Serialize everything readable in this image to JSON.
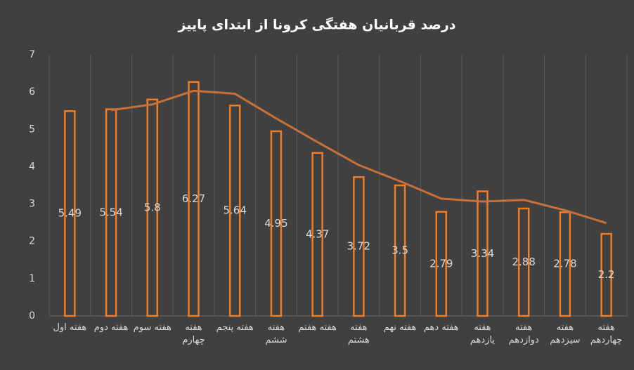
{
  "chart_data": {
    "type": "bar",
    "title": "درصد قربانیان هفتگی کرونا از ابتدای پاییز",
    "categories": [
      "هفته اول",
      "هفته دوم",
      "هفته سوم",
      "هفته چهارم",
      "هفته پنجم",
      "هفته ششم",
      "هفته هفتم",
      "هفته هشتم",
      "هفته نهم",
      "هفته دهم",
      "هفته یازدهم",
      "هفته دوازدهم",
      "هفته سیزدهم",
      "هفته چهاردهم"
    ],
    "series": [
      {
        "type": "bar",
        "color": "#f07d26",
        "values": [
          5.49,
          5.54,
          5.8,
          6.27,
          5.64,
          4.95,
          4.37,
          3.72,
          3.5,
          2.79,
          3.34,
          2.88,
          2.78,
          2.2
        ]
      },
      {
        "type": "line",
        "color": "#c8703a",
        "values": [
          null,
          5.515,
          5.67,
          6.035,
          5.955,
          5.295,
          4.66,
          4.045,
          3.61,
          3.145,
          3.065,
          3.11,
          2.83,
          2.49
        ]
      }
    ],
    "ylim": [
      0,
      7
    ],
    "yticks": [
      0,
      1,
      2,
      3,
      4,
      5,
      6,
      7
    ],
    "grid": true
  }
}
